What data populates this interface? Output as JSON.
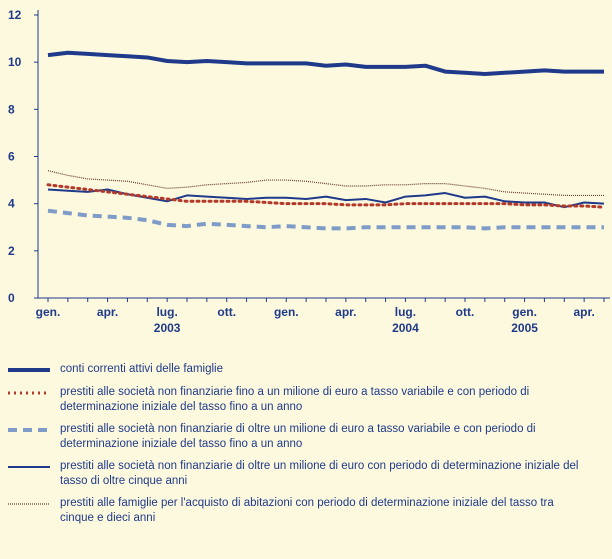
{
  "chart_data": {
    "type": "line",
    "categories": [
      "gen.",
      null,
      null,
      "apr.",
      null,
      null,
      "lug.",
      null,
      null,
      "ott.",
      null,
      null,
      "gen.",
      null,
      null,
      "apr.",
      null,
      null,
      "lug.",
      null,
      null,
      "ott.",
      null,
      null,
      "gen.",
      null,
      null,
      "apr.",
      null
    ],
    "year_labels": [
      null,
      null,
      null,
      null,
      null,
      null,
      "2003",
      null,
      null,
      null,
      null,
      null,
      null,
      null,
      null,
      null,
      null,
      null,
      "2004",
      null,
      null,
      null,
      null,
      null,
      "2005",
      null,
      null,
      null,
      null
    ],
    "ylim": [
      0,
      12
    ],
    "yticks": [
      0,
      2,
      4,
      6,
      8,
      10,
      12
    ],
    "grid": false,
    "series": [
      {
        "name": "conti correnti attivi delle famiglie",
        "color": "#1f3a8a",
        "width": 4,
        "dash": "none",
        "values": [
          10.3,
          10.4,
          10.35,
          10.3,
          10.25,
          10.2,
          10.05,
          10.0,
          10.05,
          10.0,
          9.95,
          9.95,
          9.95,
          9.95,
          9.85,
          9.9,
          9.8,
          9.8,
          9.8,
          9.85,
          9.6,
          9.55,
          9.5,
          9.55,
          9.6,
          9.65,
          9.6,
          9.6,
          9.6
        ]
      },
      {
        "name": "prestiti alle società non finanziarie fino a un milione di euro a tasso variabile e con periodo di determinazione iniziale del tasso fino a un anno",
        "color": "#b23a2a",
        "width": 3,
        "dash": "2,4",
        "values": [
          4.8,
          4.7,
          4.6,
          4.5,
          4.4,
          4.3,
          4.2,
          4.1,
          4.1,
          4.1,
          4.1,
          4.05,
          4.0,
          4.0,
          4.0,
          3.95,
          3.95,
          3.95,
          4.0,
          4.0,
          4.0,
          4.0,
          4.0,
          4.0,
          3.95,
          3.95,
          3.9,
          3.9,
          3.85
        ]
      },
      {
        "name": "prestiti alle società non finanziarie di oltre un milione di euro a tasso variabile e con periodo di determinazione iniziale del tasso fino a un anno",
        "color": "#7f9cc8",
        "width": 4,
        "dash": "9,6",
        "values": [
          3.7,
          3.6,
          3.5,
          3.45,
          3.4,
          3.3,
          3.1,
          3.05,
          3.15,
          3.1,
          3.05,
          3.0,
          3.05,
          3.0,
          2.95,
          2.95,
          3.0,
          3.0,
          3.0,
          3.0,
          3.0,
          3.0,
          2.95,
          3.0,
          3.0,
          3.0,
          3.0,
          3.0,
          3.0
        ]
      },
      {
        "name": "prestiti alle società non finanziarie di oltre un milione di euro con periodo di determinazione iniziale del tasso di oltre cinque anni",
        "color": "#1f3a8a",
        "width": 2,
        "dash": "none",
        "values": [
          4.6,
          4.55,
          4.5,
          4.6,
          4.4,
          4.25,
          4.1,
          4.35,
          4.3,
          4.25,
          4.2,
          4.25,
          4.25,
          4.2,
          4.3,
          4.15,
          4.2,
          4.05,
          4.3,
          4.35,
          4.45,
          4.25,
          4.3,
          4.1,
          4.05,
          4.05,
          3.85,
          4.05,
          4.0
        ]
      },
      {
        "name": "prestiti alle famiglie per l'acquisto di abitazioni con periodo di determinazione iniziale del tasso tra cinque e dieci anni",
        "color": "#6b3a30",
        "width": 1.2,
        "dash": "1,1",
        "values": [
          5.4,
          5.2,
          5.05,
          5.0,
          4.95,
          4.8,
          4.65,
          4.7,
          4.8,
          4.85,
          4.9,
          5.0,
          5.0,
          4.95,
          4.85,
          4.75,
          4.75,
          4.8,
          4.8,
          4.85,
          4.85,
          4.75,
          4.65,
          4.5,
          4.45,
          4.4,
          4.35,
          4.35,
          4.35
        ]
      }
    ]
  }
}
